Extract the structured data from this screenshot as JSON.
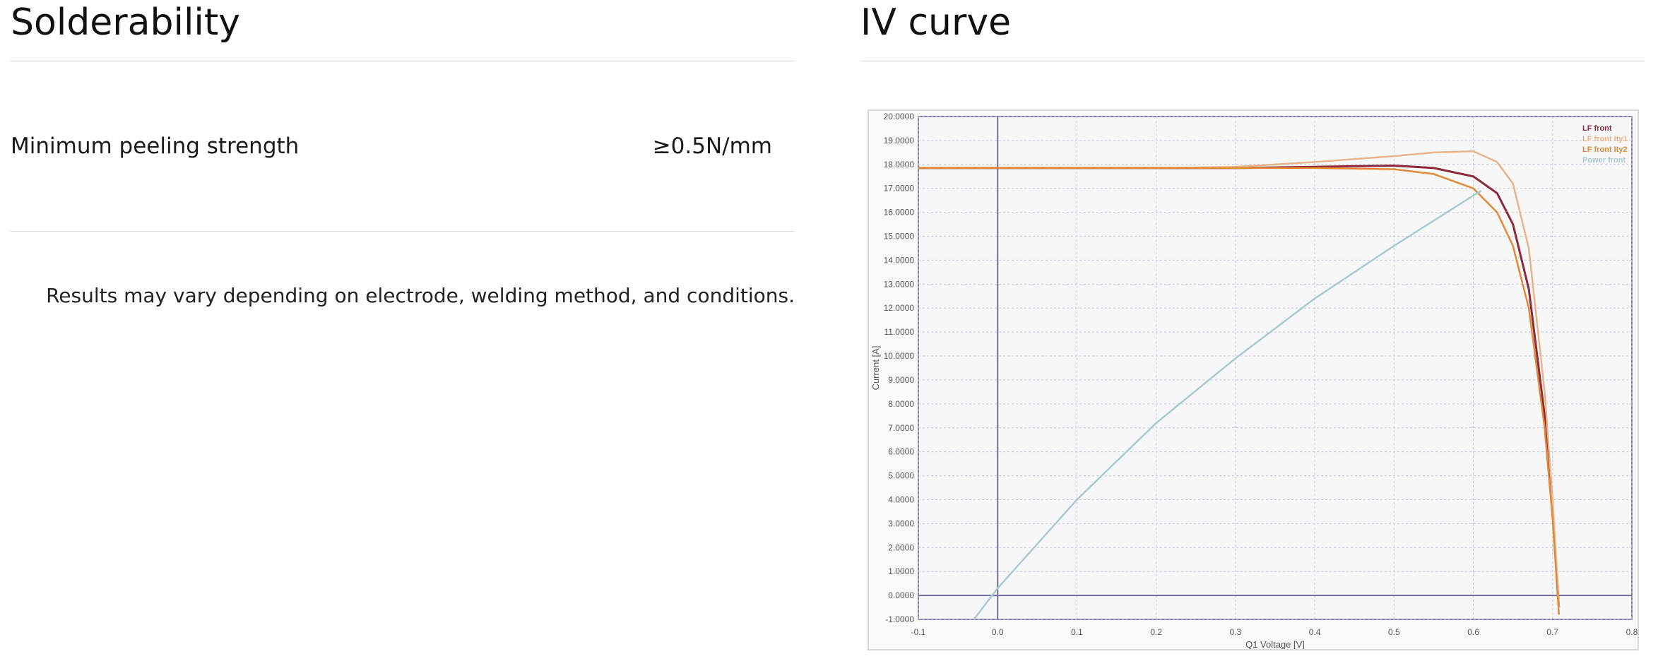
{
  "solderability": {
    "title": "Solderability",
    "row_label": "Minimum peeling strength",
    "row_value": "≥0.5N/mm",
    "note": "Results may vary depending on electrode, welding method, and conditions."
  },
  "iv": {
    "title": "IV curve"
  },
  "chart_data": {
    "type": "line",
    "xlabel": "Q1 Voltage [V]",
    "ylabel": "Current [A]",
    "xlim": [
      -0.1,
      0.8
    ],
    "ylim": [
      -1,
      20
    ],
    "x_ticks": [
      "-0.1",
      "0.0",
      "0.1",
      "0.2",
      "0.3",
      "0.4",
      "0.5",
      "0.6",
      "0.7",
      "0.8"
    ],
    "y_ticks": [
      "20.0000",
      "19.0000",
      "18.0000",
      "17.0000",
      "16.0000",
      "15.0000",
      "14.0000",
      "13.0000",
      "12.0000",
      "11.0000",
      "10.0000",
      "9.0000",
      "8.0000",
      "7.0000",
      "6.0000",
      "5.0000",
      "4.0000",
      "3.0000",
      "2.0000",
      "1.0000",
      "0.0000",
      "-1.0000"
    ],
    "legend_position": "top-right",
    "grid": true,
    "series": [
      {
        "name": "LF front",
        "color": "#8b2a3a",
        "x": [
          -0.1,
          0.0,
          0.1,
          0.2,
          0.3,
          0.4,
          0.5,
          0.55,
          0.6,
          0.63,
          0.65,
          0.67,
          0.69,
          0.7,
          0.708
        ],
        "y": [
          17.85,
          17.85,
          17.85,
          17.85,
          17.85,
          17.9,
          17.95,
          17.85,
          17.5,
          16.8,
          15.5,
          12.8,
          7.5,
          3.5,
          -0.5
        ]
      },
      {
        "name": "LF front Ity1",
        "color": "#e8b48a",
        "x": [
          -0.1,
          0.0,
          0.1,
          0.2,
          0.3,
          0.4,
          0.5,
          0.55,
          0.6,
          0.63,
          0.65,
          0.67,
          0.69,
          0.7,
          0.708
        ],
        "y": [
          17.85,
          17.85,
          17.85,
          17.85,
          17.9,
          18.1,
          18.35,
          18.5,
          18.55,
          18.1,
          17.2,
          14.5,
          8.5,
          4.0,
          -0.5
        ]
      },
      {
        "name": "LF front Ity2",
        "color": "#e08a3a",
        "x": [
          -0.1,
          0.0,
          0.1,
          0.2,
          0.3,
          0.4,
          0.5,
          0.55,
          0.6,
          0.63,
          0.65,
          0.67,
          0.69,
          0.7,
          0.708
        ],
        "y": [
          17.85,
          17.85,
          17.85,
          17.85,
          17.85,
          17.85,
          17.8,
          17.6,
          17.0,
          16.0,
          14.6,
          12.0,
          7.0,
          3.2,
          -0.8
        ]
      },
      {
        "name": "Power front",
        "color": "#a9c9d4",
        "x": [
          -0.03,
          0.0,
          0.1,
          0.2,
          0.3,
          0.4,
          0.5,
          0.6,
          0.61
        ],
        "y": [
          -1.0,
          0.3,
          4.0,
          7.2,
          9.9,
          12.4,
          14.6,
          16.7,
          16.9
        ]
      }
    ]
  }
}
